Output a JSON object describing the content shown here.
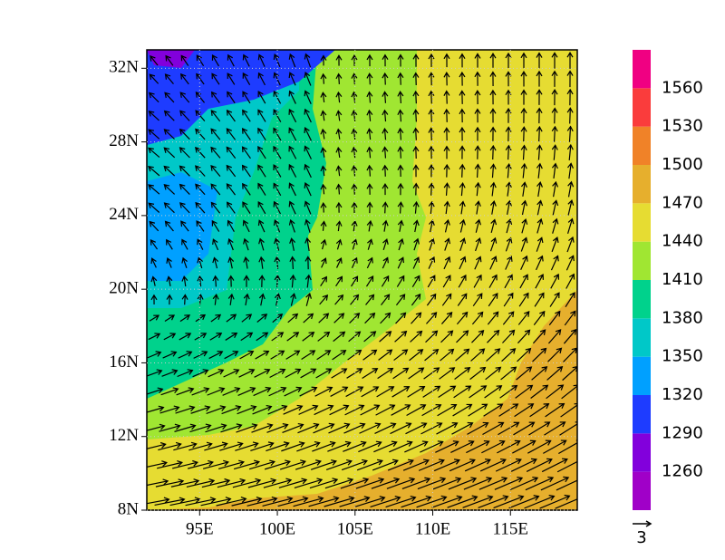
{
  "map": {
    "xlim": [
      91.6,
      119.3
    ],
    "ylim": [
      8,
      33
    ],
    "xticks": [
      {
        "value": 95,
        "label": "95E"
      },
      {
        "value": 100,
        "label": "100E"
      },
      {
        "value": 105,
        "label": "105E"
      },
      {
        "value": 110,
        "label": "110E"
      },
      {
        "value": 115,
        "label": "115E"
      }
    ],
    "yticks": [
      {
        "value": 8,
        "label": "8N"
      },
      {
        "value": 12,
        "label": "12N"
      },
      {
        "value": 16,
        "label": "16N"
      },
      {
        "value": 20,
        "label": "20N"
      },
      {
        "value": 24,
        "label": "24N"
      },
      {
        "value": 28,
        "label": "28N"
      },
      {
        "value": 32,
        "label": "32N"
      }
    ],
    "colorbar": {
      "levels": [
        1260,
        1290,
        1320,
        1350,
        1380,
        1410,
        1440,
        1470,
        1500,
        1530,
        1560
      ],
      "colors": [
        "#a000c8",
        "#8200dc",
        "#1e3cff",
        "#00a0ff",
        "#00c8c8",
        "#00d28c",
        "#a0e632",
        "#e6dc32",
        "#e6af2d",
        "#f08228",
        "#fa3c3c",
        "#f00082"
      ]
    },
    "reference_vector": 3
  }
}
